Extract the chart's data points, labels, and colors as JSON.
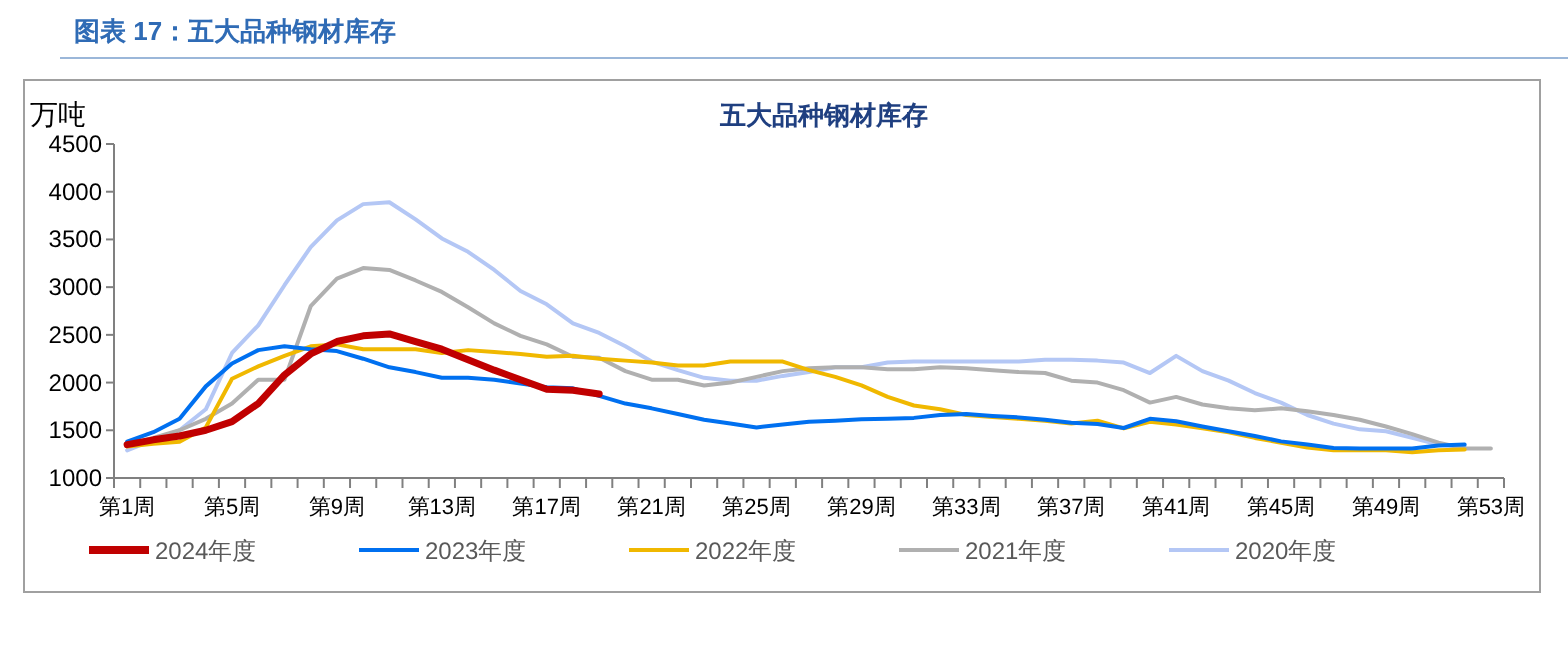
{
  "chart_data": {
    "type": "line",
    "title": "图表 17：五大品种钢材库存",
    "subtitle": "五大品种钢材库存",
    "ylabel": "万吨",
    "categories": [
      "第1周",
      null,
      null,
      null,
      "第5周",
      null,
      null,
      null,
      "第9周",
      null,
      null,
      null,
      "第13周",
      null,
      null,
      null,
      "第17周",
      null,
      null,
      null,
      "第21周",
      null,
      null,
      null,
      "第25周",
      null,
      null,
      null,
      "第29周",
      null,
      null,
      null,
      "第33周",
      null,
      null,
      null,
      "第37周",
      null,
      null,
      null,
      "第41周",
      null,
      null,
      null,
      "第45周",
      null,
      null,
      null,
      "第49周",
      null,
      null,
      null,
      "第53周"
    ],
    "ylim": [
      1000,
      4500
    ],
    "yticks": [
      1000,
      1500,
      2000,
      2500,
      3000,
      3500,
      4000,
      4500
    ],
    "grid": false,
    "legend": "bottom",
    "marker": "none",
    "line_style": "solid",
    "series": [
      {
        "name": "2024年度",
        "color": "#c00000",
        "values": [
          1350,
          1400,
          1440,
          1500,
          1590,
          1780,
          2080,
          2300,
          2430,
          2490,
          2510,
          2430,
          2350,
          2240,
          2130,
          2030,
          1930,
          1920,
          1880,
          null,
          null,
          null,
          null,
          null,
          null,
          null,
          null,
          null,
          null,
          null,
          null,
          null,
          null,
          null,
          null,
          null,
          null,
          null,
          null,
          null,
          null,
          null,
          null,
          null,
          null,
          null,
          null,
          null,
          null,
          null,
          null,
          null,
          null
        ]
      },
      {
        "name": "2023年度",
        "color": "#0070f0",
        "values": [
          1380,
          1480,
          1620,
          1960,
          2200,
          2340,
          2380,
          2350,
          2330,
          2250,
          2160,
          2110,
          2050,
          2050,
          2030,
          1990,
          1950,
          1940,
          1860,
          1780,
          1730,
          1670,
          1610,
          1570,
          1530,
          1560,
          1590,
          1600,
          1615,
          1620,
          1630,
          1660,
          1670,
          1650,
          1635,
          1610,
          1580,
          1566,
          1524,
          1620,
          1594,
          1540,
          1490,
          1440,
          1384,
          1350,
          1315,
          1310,
          1310,
          1310,
          1340,
          1350,
          null
        ]
      },
      {
        "name": "2022年度",
        "color": "#f0b800",
        "values": [
          1330,
          1360,
          1380,
          1530,
          2040,
          2170,
          2280,
          2380,
          2400,
          2350,
          2350,
          2350,
          2310,
          2340,
          2320,
          2300,
          2270,
          2280,
          2250,
          2230,
          2210,
          2180,
          2180,
          2220,
          2220,
          2220,
          2130,
          2060,
          1970,
          1850,
          1760,
          1720,
          1660,
          1640,
          1620,
          1600,
          1570,
          1600,
          1520,
          1590,
          1560,
          1520,
          1480,
          1420,
          1370,
          1320,
          1290,
          1290,
          1290,
          1270,
          1290,
          1300,
          null
        ]
      },
      {
        "name": "2021年度",
        "color": "#b0b0b0",
        "values": [
          1350,
          1420,
          1500,
          1620,
          1780,
          2030,
          2030,
          2800,
          3090,
          3200,
          3180,
          3070,
          2950,
          2790,
          2620,
          2490,
          2400,
          2270,
          2260,
          2120,
          2030,
          2030,
          1970,
          2000,
          2060,
          2120,
          2150,
          2160,
          2160,
          2140,
          2140,
          2160,
          2150,
          2130,
          2110,
          2100,
          2020,
          2000,
          1920,
          1790,
          1850,
          1770,
          1730,
          1710,
          1730,
          1700,
          1660,
          1610,
          1540,
          1460,
          1370,
          1310,
          1310
        ]
      },
      {
        "name": "2020年度",
        "color": "#b4c7f5",
        "values": [
          1290,
          1400,
          1500,
          1720,
          2310,
          2600,
          3020,
          3420,
          3700,
          3870,
          3890,
          3710,
          3510,
          3370,
          3180,
          2960,
          2820,
          2620,
          2520,
          2380,
          2220,
          2130,
          2050,
          2020,
          2020,
          2070,
          2110,
          2160,
          2160,
          2210,
          2220,
          2220,
          2220,
          2220,
          2220,
          2240,
          2240,
          2230,
          2210,
          2100,
          2280,
          2120,
          2020,
          1890,
          1790,
          1660,
          1570,
          1510,
          1490,
          1420,
          1350,
          1320,
          null
        ]
      }
    ]
  }
}
